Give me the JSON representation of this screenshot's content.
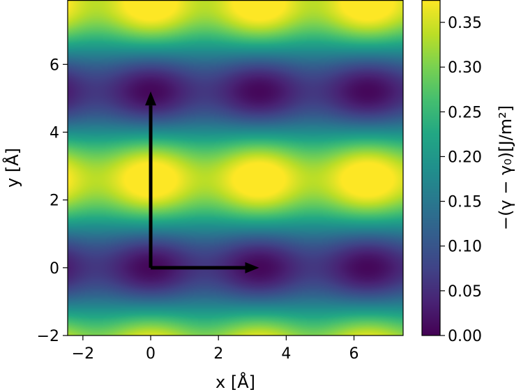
{
  "chart_data": {
    "type": "heatmap",
    "title": "",
    "xlabel": "x [Å]",
    "ylabel": "y [Å]",
    "xlim": [
      -2.45,
      7.45
    ],
    "ylim": [
      -2.0,
      7.9
    ],
    "xticks": [
      -2,
      0,
      2,
      4,
      6
    ],
    "yticks": [
      -2,
      0,
      2,
      4,
      6
    ],
    "colormap": "viridis",
    "colorbar": {
      "label_text": "−(γ − γ₀)[J/m²]",
      "range": [
        0.0,
        0.375
      ],
      "ticks": [
        0.0,
        0.05,
        0.1,
        0.15,
        0.2,
        0.25,
        0.3,
        0.35
      ],
      "tick_labels": [
        "0.00",
        "0.05",
        "0.10",
        "0.15",
        "0.20",
        "0.25",
        "0.30",
        "0.35"
      ]
    },
    "periodicity": {
      "ax": 3.2,
      "ay": 5.2
    },
    "features": {
      "maxima": [
        {
          "x": 0.0,
          "y": 2.6
        },
        {
          "x": 3.2,
          "y": 2.6
        },
        {
          "x": 6.4,
          "y": 2.6
        },
        {
          "x": 0.0,
          "y": 7.8
        },
        {
          "x": 3.2,
          "y": 7.8
        },
        {
          "x": 6.4,
          "y": 7.8
        },
        {
          "x": 0.0,
          "y": -2.6
        },
        {
          "x": 3.2,
          "y": -2.6
        },
        {
          "x": 6.4,
          "y": -2.6
        }
      ],
      "minima": [
        {
          "x": 0.0,
          "y": 0.0
        },
        {
          "x": 3.2,
          "y": 0.0
        },
        {
          "x": 6.4,
          "y": 0.0
        },
        {
          "x": 0.0,
          "y": 5.2
        },
        {
          "x": 3.2,
          "y": 5.2
        },
        {
          "x": 6.4,
          "y": 5.2
        }
      ],
      "peak_value": 0.375,
      "min_value": 0.0
    },
    "arrows": [
      {
        "name": "lattice-vector-a",
        "from": [
          0,
          0
        ],
        "to": [
          3.2,
          0
        ],
        "color": "#000000"
      },
      {
        "name": "lattice-vector-b",
        "from": [
          0,
          0
        ],
        "to": [
          0,
          5.2
        ],
        "color": "#000000"
      }
    ]
  }
}
